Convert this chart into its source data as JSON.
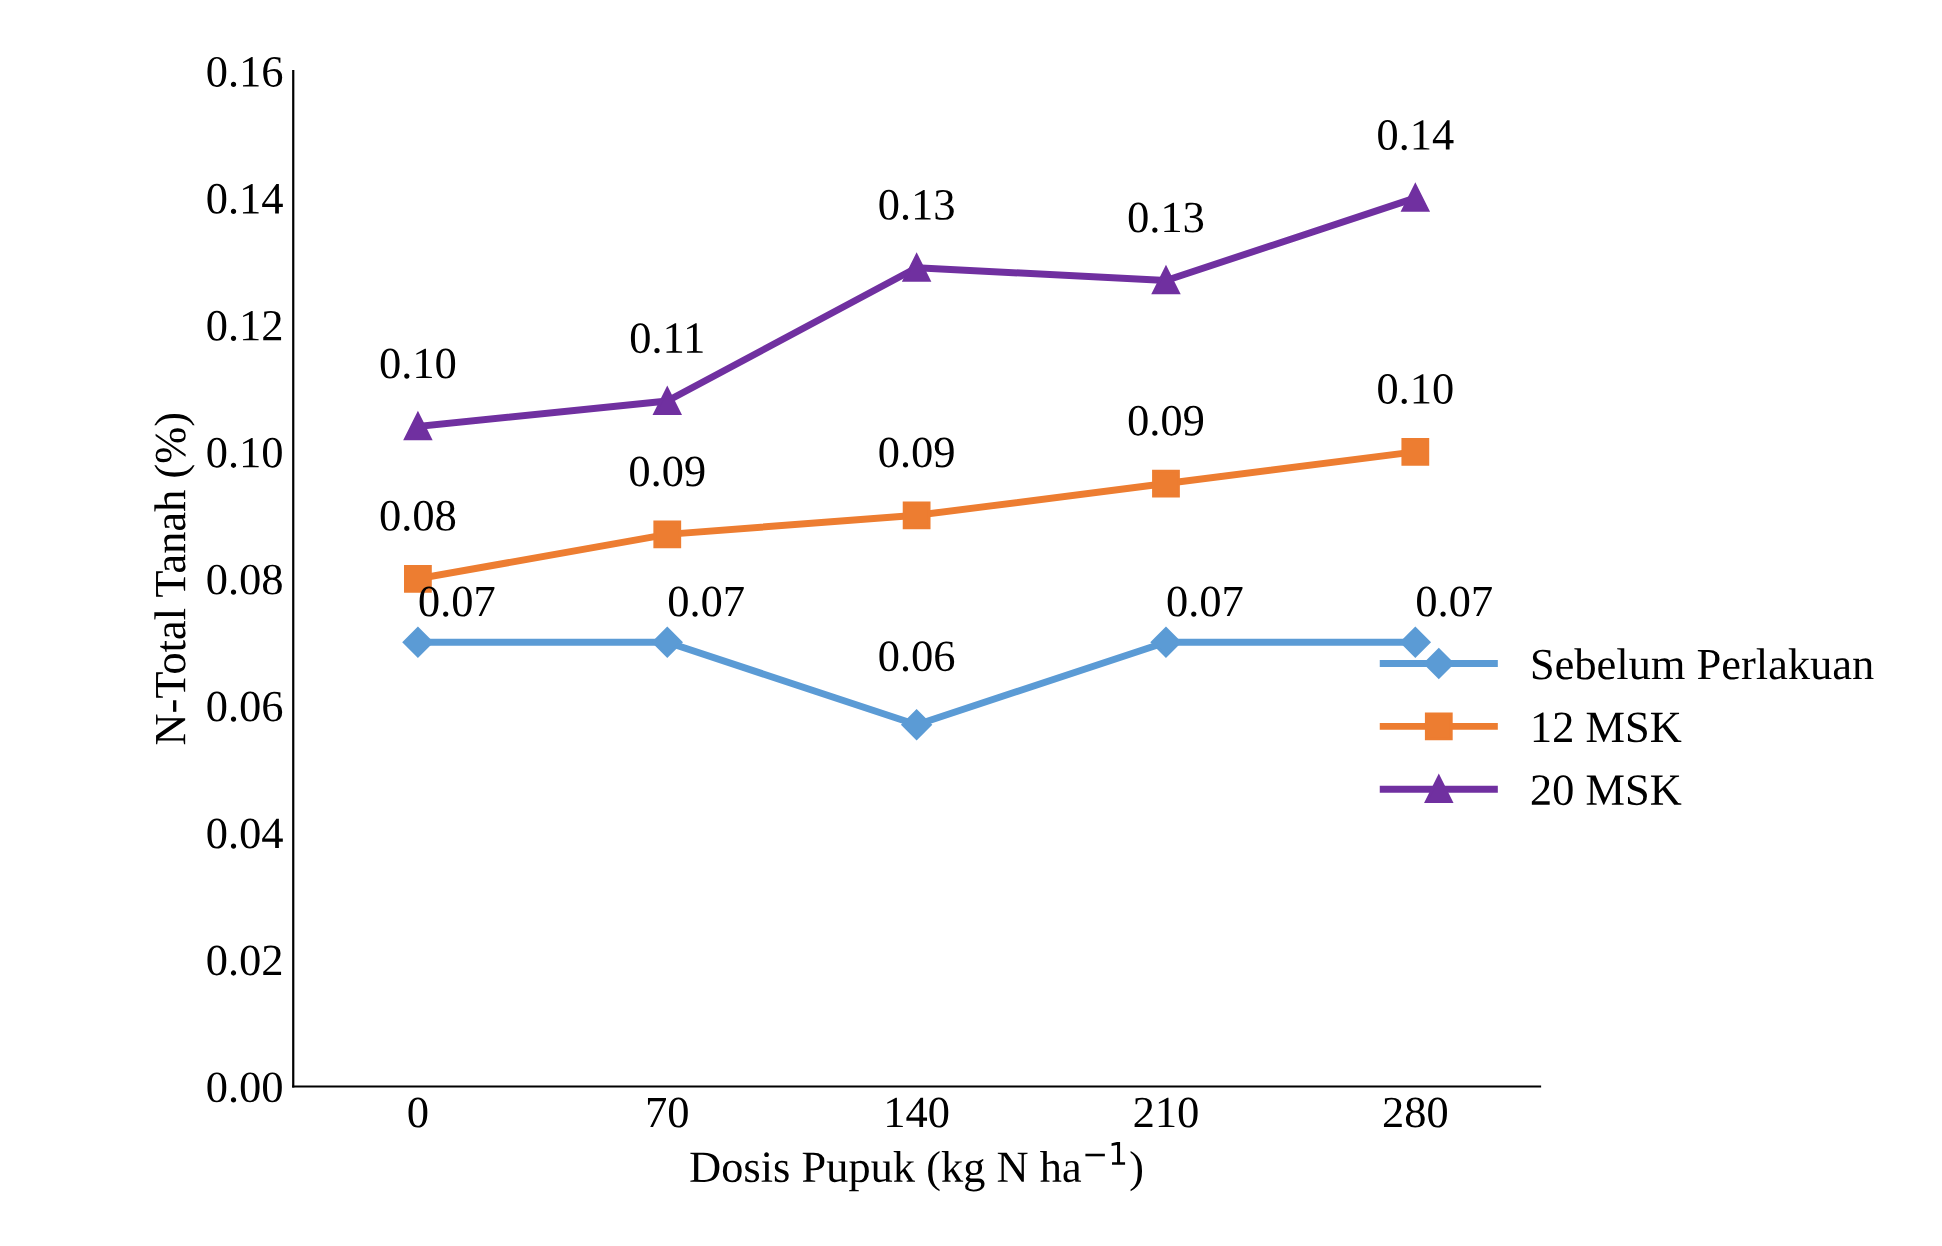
{
  "chart_data": {
    "type": "line",
    "xlabel": "Dosis Pupuk (kg N ha$^{−1}$)",
    "ylabel": "N-Total Tanah (%)",
    "categories": [
      "0",
      "70",
      "140",
      "210",
      "280"
    ],
    "series": [
      {
        "name": "Sebelum Perlakuan",
        "color": "#5b9bd5",
        "marker": "diamond",
        "values": [
          0.07,
          0.07,
          0.057,
          0.07,
          0.07
        ],
        "value_labels": [
          "0.07",
          "0.07",
          "0.06",
          "0.07",
          "0.07"
        ]
      },
      {
        "name": "12 MSK",
        "color": "#ed7d31",
        "marker": "square",
        "values": [
          0.08,
          0.087,
          0.09,
          0.095,
          0.1
        ],
        "value_labels": [
          "0.08",
          "0.09",
          "0.09",
          "0.09",
          "0.10"
        ]
      },
      {
        "name": "20 MSK",
        "color": "#7030a0",
        "marker": "triangle",
        "values": [
          0.104,
          0.108,
          0.129,
          0.127,
          0.14
        ],
        "value_labels": [
          "0.10",
          "0.11",
          "0.13",
          "0.13",
          "0.14"
        ]
      }
    ],
    "ylim": [
      0,
      0.16
    ],
    "yticks": [
      {
        "value": 0,
        "label": "0.00"
      },
      {
        "value": 0.02,
        "label": "0.02"
      },
      {
        "value": 0.04,
        "label": "0.04"
      },
      {
        "value": 0.06,
        "label": "0.06"
      },
      {
        "value": 0.08,
        "label": "0.08"
      },
      {
        "value": 0.1,
        "label": "0.10"
      },
      {
        "value": 0.12,
        "label": "0.12"
      },
      {
        "value": 0.14,
        "label": "0.14"
      },
      {
        "value": 0.16,
        "label": "0.16"
      }
    ],
    "grid": false,
    "legend": "right",
    "line_style": "solid"
  }
}
